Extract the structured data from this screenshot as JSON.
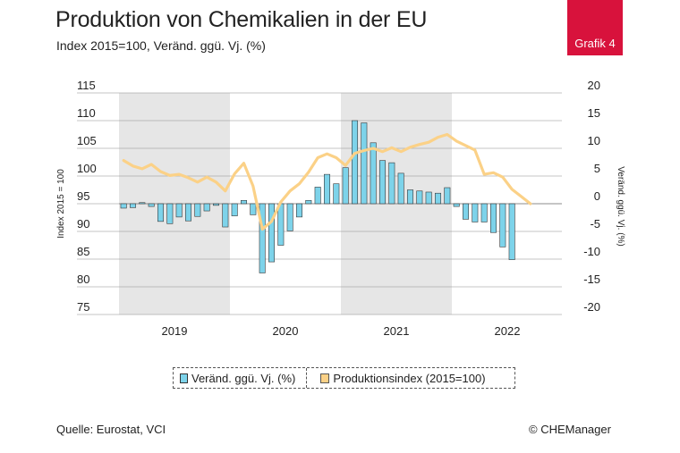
{
  "header": {
    "title": "Produktion von Chemikalien in der EU",
    "subtitle": "Index 2015=100, Veränd. ggü. Vj. (%)",
    "badge": "Grafik 4"
  },
  "footer": {
    "source": "Quelle: Eurostat, VCI",
    "copyright": "© CHEManager"
  },
  "legend": {
    "bar_label": "Veränd. ggü. Vj. (%)",
    "line_label": "Produktionsindex (2015=100)"
  },
  "colors": {
    "bar": "#7dd3ea",
    "bar_stroke": "#3a3a3a",
    "line": "#fbd187",
    "shade": "#e6e6e6",
    "grid": "#8c8c8c",
    "badge": "#d8123c"
  },
  "chart_data": {
    "type": "bar+line",
    "title": "Produktion von Chemikalien in der EU",
    "years": [
      "2019",
      "2020",
      "2021",
      "2022"
    ],
    "shaded_years": [
      "2019",
      "2021"
    ],
    "months_per_year": 12,
    "left_axis": {
      "label": "Index 2015 = 100",
      "range": [
        75,
        115
      ],
      "ticks": [
        115,
        110,
        105,
        100,
        95,
        90,
        85,
        80,
        75
      ]
    },
    "right_axis": {
      "label": "Veränd. ggü. Vj. (%)",
      "range": [
        -20,
        20
      ],
      "ticks": [
        20,
        15,
        10,
        5,
        0,
        -5,
        -10,
        -15,
        -20
      ]
    },
    "series": [
      {
        "name": "Veränd. ggü. Vj. (%)",
        "type": "bar",
        "axis": "right",
        "values": [
          -0.8,
          -0.7,
          0.2,
          -0.5,
          -3.2,
          -3.6,
          -2.4,
          -3.1,
          -2.3,
          -1.3,
          -0.3,
          -4.2,
          -2.2,
          0.6,
          -2.0,
          -12.5,
          -10.5,
          -7.5,
          -4.9,
          -2.4,
          0.6,
          3.0,
          5.3,
          3.6,
          6.5,
          15.0,
          14.6,
          11.0,
          7.8,
          7.4,
          5.5,
          2.5,
          2.3,
          2.1,
          1.9,
          2.9,
          -0.5,
          -2.8,
          -3.3,
          -3.3,
          -5.2,
          -7.8,
          -10.1
        ]
      },
      {
        "name": "Produktionsindex (2015=100)",
        "type": "line",
        "axis": "left",
        "values": [
          102.8,
          101.8,
          101.3,
          102.1,
          100.8,
          100.1,
          100.3,
          99.7,
          98.9,
          99.8,
          98.9,
          97.3,
          100.4,
          102.3,
          98.2,
          90.4,
          91.8,
          95.3,
          97.3,
          98.6,
          100.7,
          103.3,
          104.0,
          103.3,
          101.9,
          104.1,
          104.6,
          105.0,
          104.4,
          105.1,
          104.4,
          105.2,
          105.7,
          106.1,
          107.0,
          107.5,
          106.3,
          105.5,
          104.7,
          100.3,
          100.6,
          99.8,
          97.6,
          96.3,
          95.0
        ]
      }
    ]
  }
}
